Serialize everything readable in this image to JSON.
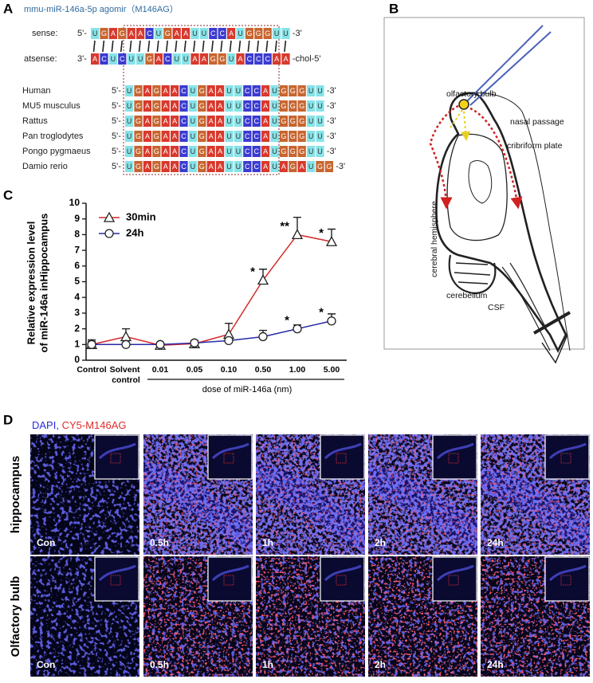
{
  "panel_a": {
    "letter": "A",
    "title": "mmu-miR-146a-5p agomir（M146AG）",
    "nucleotide_colors": {
      "U": "#86e3e8",
      "G": "#c8652f",
      "A": "#d8392d",
      "C": "#3b3bd0"
    },
    "duplex": [
      {
        "name": "sense:",
        "left": "5'-",
        "right": "-3'",
        "letters": [
          "U",
          "G",
          "A",
          "G",
          "A",
          "A",
          "C",
          "U",
          "G",
          "A",
          "A",
          "U",
          "U",
          "C",
          "C",
          "A",
          "U",
          "G",
          "G",
          "G",
          "U",
          "U"
        ]
      },
      {
        "name": "atsense:",
        "left": "3'-",
        "right": "-chol-5'",
        "letters": [
          "A",
          "C",
          "U",
          "C",
          "U",
          "U",
          "G",
          "A",
          "C",
          "U",
          "U",
          "A",
          "A",
          "G",
          "G",
          "U",
          "A",
          "C",
          "C",
          "C",
          "A",
          "A"
        ]
      }
    ],
    "species": [
      {
        "name": "Human",
        "left": "5'-",
        "right": "-3'",
        "letters": [
          "U",
          "G",
          "A",
          "G",
          "A",
          "A",
          "C",
          "U",
          "G",
          "A",
          "A",
          "U",
          "U",
          "C",
          "C",
          "A",
          "U",
          "G",
          "G",
          "G",
          "U",
          "U"
        ]
      },
      {
        "name": "MU5 musculus",
        "left": "5'-",
        "right": "-3'",
        "letters": [
          "U",
          "G",
          "A",
          "G",
          "A",
          "A",
          "C",
          "U",
          "G",
          "A",
          "A",
          "U",
          "U",
          "C",
          "C",
          "A",
          "U",
          "G",
          "G",
          "G",
          "U",
          "U"
        ]
      },
      {
        "name": "Rattus",
        "left": "5'-",
        "right": "-3'",
        "letters": [
          "U",
          "G",
          "A",
          "G",
          "A",
          "A",
          "C",
          "U",
          "G",
          "A",
          "A",
          "U",
          "U",
          "C",
          "C",
          "A",
          "U",
          "G",
          "G",
          "G",
          "U",
          "U"
        ]
      },
      {
        "name": "Pan troglodytes",
        "left": "5'-",
        "right": "-3'",
        "letters": [
          "U",
          "G",
          "A",
          "G",
          "A",
          "A",
          "C",
          "U",
          "G",
          "A",
          "A",
          "U",
          "U",
          "C",
          "C",
          "A",
          "U",
          "G",
          "G",
          "G",
          "U",
          "U"
        ]
      },
      {
        "name": "Pongo pygmaeus",
        "left": "5'-",
        "right": "-3'",
        "letters": [
          "U",
          "G",
          "A",
          "G",
          "A",
          "A",
          "C",
          "U",
          "G",
          "A",
          "A",
          "U",
          "U",
          "C",
          "C",
          "A",
          "U",
          "G",
          "G",
          "G",
          "U",
          "U"
        ]
      },
      {
        "name": "Damio rerio",
        "left": "5'-",
        "right": "-3'",
        "letters": [
          "U",
          "G",
          "A",
          "G",
          "A",
          "A",
          "C",
          "U",
          "G",
          "A",
          "A",
          "U",
          "U",
          "C",
          "C",
          "A",
          "U",
          "A",
          "G",
          "A",
          "U",
          "G",
          "G"
        ]
      }
    ]
  },
  "panel_b": {
    "letter": "B",
    "labels": [
      "olfactory bulb",
      "nasal passage",
      "cribriform plate",
      "cerebral hemisphere",
      "cerebellum",
      "CSF"
    ]
  },
  "panel_c": {
    "letter": "C"
  },
  "chart_data": {
    "type": "line",
    "ylabel": [
      "Relative expression level",
      "of miR-146a inHippocampus"
    ],
    "xlabel": "dose of miR-146a (nm)",
    "categories": [
      "Control",
      "Solvent control",
      "0.01",
      "0.05",
      "0.10",
      "0.50",
      "1.00",
      "5.00"
    ],
    "ylim": [
      0,
      10
    ],
    "yticks": [
      0,
      1,
      2,
      3,
      4,
      5,
      6,
      7,
      8,
      9,
      10
    ],
    "legend": "upper left",
    "series": [
      {
        "name": "30min",
        "color": "#d62a2a",
        "marker": "triangle",
        "values": [
          1.0,
          1.5,
          0.95,
          1.05,
          1.65,
          5.1,
          8.0,
          7.55
        ],
        "errors": [
          0.3,
          0.5,
          0.15,
          0.2,
          0.7,
          0.7,
          1.1,
          0.8
        ]
      },
      {
        "name": "24h",
        "color": "#2a2aa8",
        "marker": "circle",
        "values": [
          1.0,
          1.0,
          1.0,
          1.1,
          1.25,
          1.5,
          2.0,
          2.5
        ],
        "errors": [
          0.2,
          0.1,
          0.1,
          0.15,
          0.1,
          0.4,
          0.25,
          0.45
        ]
      }
    ],
    "annotations": [
      {
        "text": "*",
        "series": 0,
        "index": 5
      },
      {
        "text": "**",
        "series": 0,
        "index": 6
      },
      {
        "text": "*",
        "series": 0,
        "index": 7
      },
      {
        "text": "*",
        "series": 1,
        "index": 6
      },
      {
        "text": "*",
        "series": 1,
        "index": 7
      }
    ]
  },
  "panel_d": {
    "letter": "D",
    "legend": [
      {
        "text": "DAPI,",
        "color": "#2a2ae0"
      },
      {
        "text": "CY5-M146AG",
        "color": "#e02a2a"
      }
    ],
    "rows": [
      {
        "label": "hippocampus",
        "times": [
          "Con",
          "0.5h",
          "1h",
          "2h",
          "24h"
        ]
      },
      {
        "label": "Olfactory bulb",
        "times": [
          "Con",
          "0.5h",
          "1h",
          "2h",
          "24h"
        ]
      }
    ]
  }
}
